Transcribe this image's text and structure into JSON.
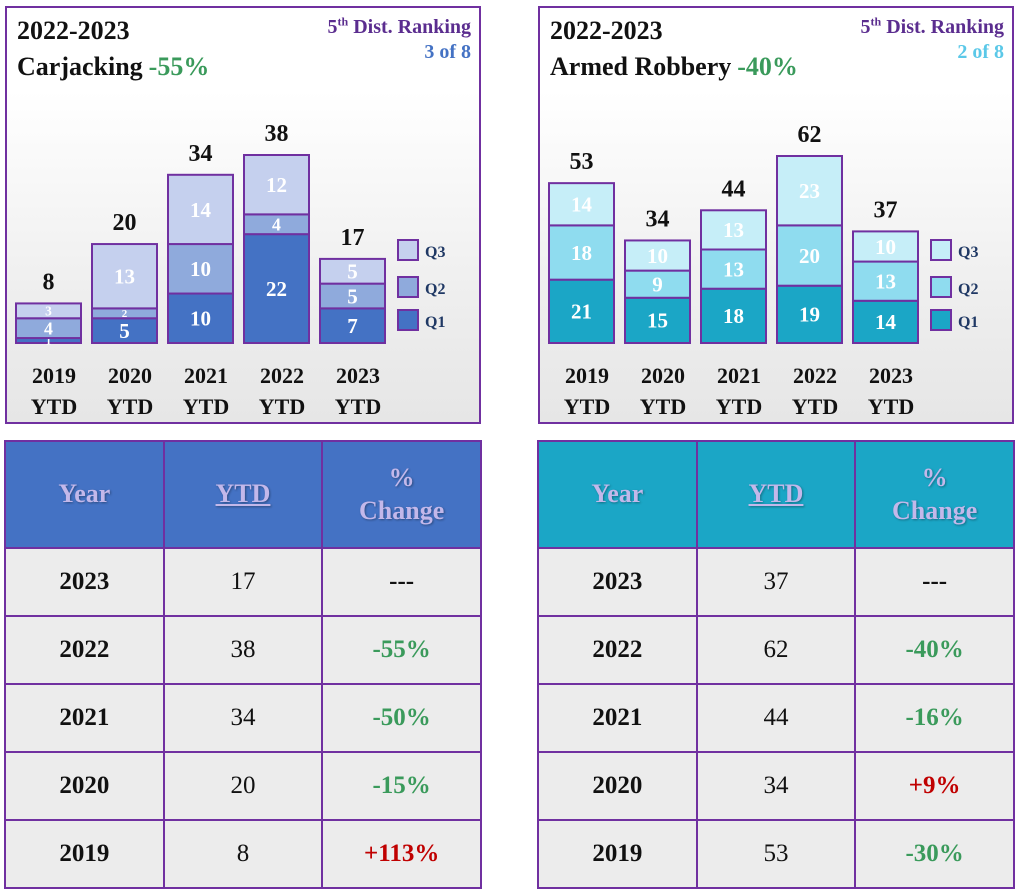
{
  "panels": [
    {
      "title_period": "2022-2023",
      "crime": "Carjacking",
      "crime_change": "-55%",
      "ranking_label": "Dist. Ranking",
      "ranking_prefix": "5",
      "ranking_suffix": "th",
      "ranking_value": "3 of 8",
      "ranking_value_color": "#4472c4",
      "table": {
        "headers": {
          "year": "Year",
          "ytd": "YTD",
          "pct_line1": "%",
          "pct_line2": "Change"
        },
        "rows": [
          {
            "year": "2023",
            "ytd": "17",
            "change": "---"
          },
          {
            "year": "2022",
            "ytd": "38",
            "change": "-55%"
          },
          {
            "year": "2021",
            "ytd": "34",
            "change": "-50%"
          },
          {
            "year": "2020",
            "ytd": "20",
            "change": "-15%"
          },
          {
            "year": "2019",
            "ytd": "8",
            "change": "+113%"
          }
        ]
      }
    },
    {
      "title_period": "2022-2023",
      "crime": "Armed Robbery",
      "crime_change": "-40%",
      "ranking_label": "Dist. Ranking",
      "ranking_prefix": "5",
      "ranking_suffix": "th",
      "ranking_value": "2 of 8",
      "ranking_value_color": "#5bc8e8",
      "table": {
        "headers": {
          "year": "Year",
          "ytd": "YTD",
          "pct_line1": "%",
          "pct_line2": "Change"
        },
        "rows": [
          {
            "year": "2023",
            "ytd": "37",
            "change": "---"
          },
          {
            "year": "2022",
            "ytd": "62",
            "change": "-40%"
          },
          {
            "year": "2021",
            "ytd": "44",
            "change": "-16%"
          },
          {
            "year": "2020",
            "ytd": "34",
            "change": "+9%"
          },
          {
            "year": "2019",
            "ytd": "53",
            "change": "-30%"
          }
        ]
      }
    }
  ],
  "chart_data": [
    {
      "type": "bar",
      "stacked": true,
      "title": "2022-2023 Carjacking -55%",
      "categories": [
        "2019 YTD",
        "2020 YTD",
        "2021 YTD",
        "2022 YTD",
        "2023 YTD"
      ],
      "totals": [
        8,
        20,
        34,
        38,
        17
      ],
      "series": [
        {
          "name": "Q1",
          "values": [
            1,
            5,
            10,
            22,
            7
          ],
          "color": "#4472c4"
        },
        {
          "name": "Q2",
          "values": [
            4,
            2,
            10,
            4,
            5
          ],
          "color": "#8faadc"
        },
        {
          "name": "Q3",
          "values": [
            3,
            13,
            14,
            12,
            5
          ],
          "color": "#c5d0ee"
        }
      ],
      "legend": "right",
      "ylim": [
        0,
        38
      ]
    },
    {
      "type": "bar",
      "stacked": true,
      "title": "2022-2023 Armed Robbery -40%",
      "categories": [
        "2019 YTD",
        "2020 YTD",
        "2021 YTD",
        "2022 YTD",
        "2023 YTD"
      ],
      "totals": [
        53,
        34,
        44,
        62,
        37
      ],
      "series": [
        {
          "name": "Q1",
          "values": [
            21,
            15,
            18,
            19,
            14
          ],
          "color": "#1ba6c6"
        },
        {
          "name": "Q2",
          "values": [
            18,
            9,
            13,
            20,
            13
          ],
          "color": "#8fdcef"
        },
        {
          "name": "Q3",
          "values": [
            14,
            10,
            13,
            23,
            10
          ],
          "color": "#c6eef8"
        }
      ],
      "legend": "right",
      "ylim": [
        0,
        62
      ]
    }
  ]
}
